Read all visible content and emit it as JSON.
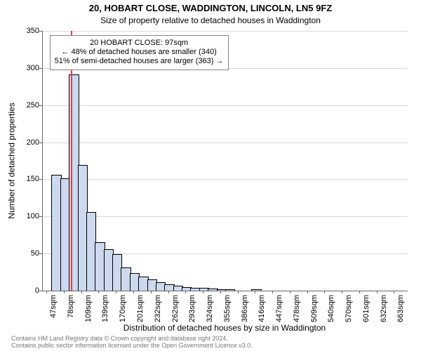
{
  "title_main": "20, HOBART CLOSE, WADDINGTON, LINCOLN, LN5 9FZ",
  "title_sub": "Size of property relative to detached houses in Waddington",
  "ylabel": "Number of detached properties",
  "xlabel": "Distribution of detached houses by size in Waddington",
  "ylim": [
    0,
    350
  ],
  "ytick_step": 50,
  "xtick_labels": [
    "47sqm",
    "78sqm",
    "109sqm",
    "139sqm",
    "170sqm",
    "201sqm",
    "232sqm",
    "262sqm",
    "293sqm",
    "324sqm",
    "355sqm",
    "386sqm",
    "416sqm",
    "447sqm",
    "478sqm",
    "509sqm",
    "540sqm",
    "570sqm",
    "601sqm",
    "632sqm",
    "663sqm"
  ],
  "xtick_step_bars": 2,
  "bars": {
    "count": 42,
    "values": [
      0,
      155,
      150,
      290,
      168,
      105,
      64,
      55,
      48,
      30,
      23,
      18,
      14,
      10,
      8,
      6,
      4,
      3,
      3,
      2,
      1,
      1,
      0,
      0,
      1,
      0,
      0,
      0,
      0,
      0,
      0,
      0,
      0,
      0,
      0,
      0,
      0,
      0,
      0,
      0,
      0,
      0
    ],
    "fill_color": "#cdd9ef",
    "border_color": "#000000",
    "bar_width_ratio": 1.0
  },
  "highlight": {
    "line_bar_index": 3.2,
    "line_color": "#e04040",
    "line_height_value": 350,
    "callout_line1": "20 HOBART CLOSE: 97sqm",
    "callout_line2": "← 48% of detached houses are smaller (340)",
    "callout_line3": "51% of semi-detached houses are larger (363) →"
  },
  "styling": {
    "background_color": "#ffffff",
    "grid_color": "#d9d9d9",
    "axis_color": "#666666",
    "text_color": "#000000",
    "title_fontsize": 13,
    "subtitle_fontsize": 12,
    "label_fontsize": 12,
    "tick_fontsize": 11,
    "callout_fontsize": 11,
    "footer_fontsize": 9,
    "footer_color": "#777777"
  },
  "footer_line1": "Contains HM Land Registry data © Crown copyright and database right 2024.",
  "footer_line2": "Contains public sector information licensed under the Open Government Licence v3.0."
}
